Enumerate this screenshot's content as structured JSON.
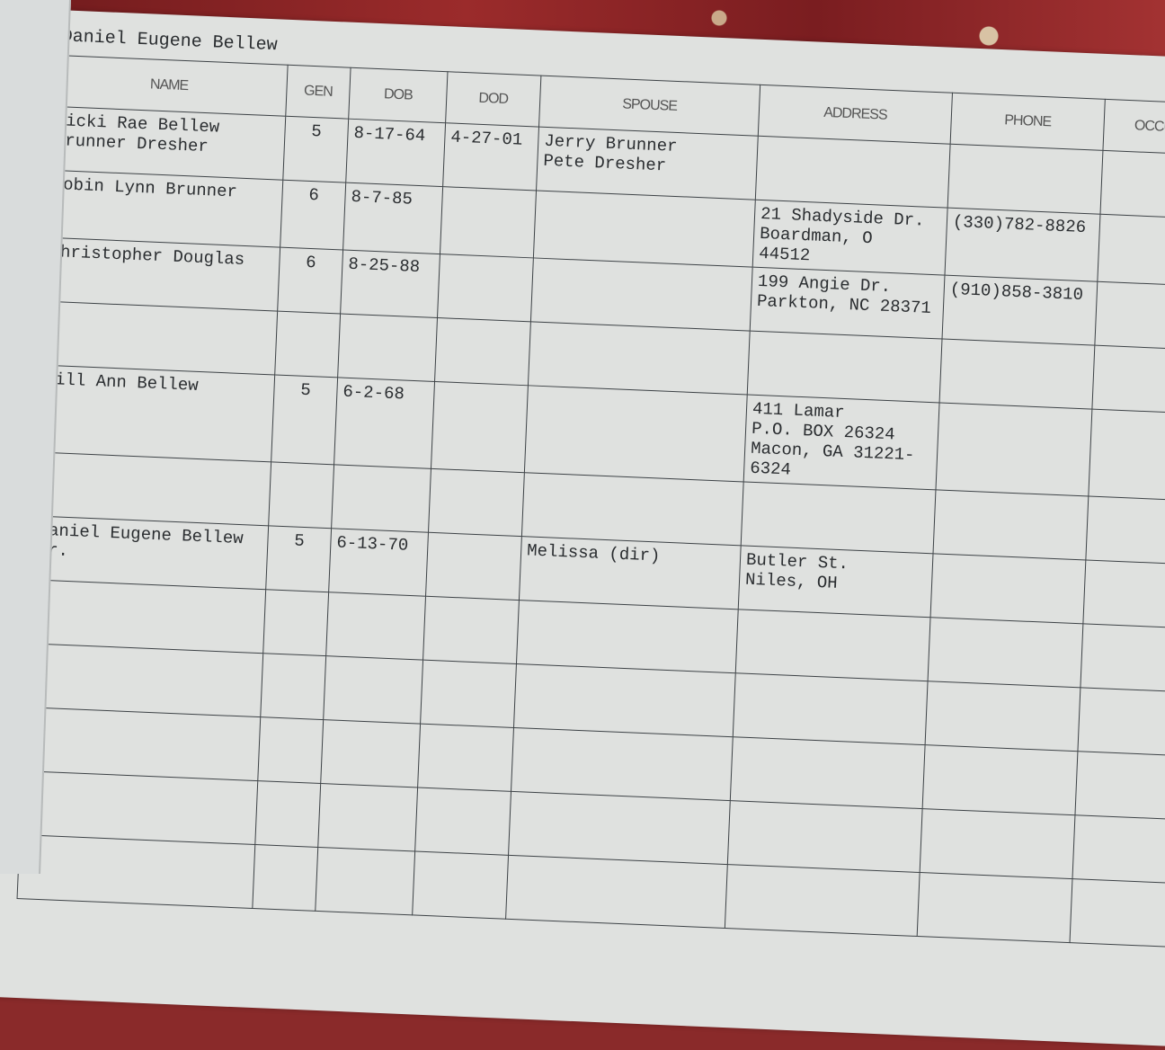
{
  "page_title": "Daniel Eugene Bellew",
  "columns": [
    "NAME",
    "GEN",
    "DOB",
    "DOD",
    "SPOUSE",
    "ADDRESS",
    "PHONE",
    "OCCUPATI"
  ],
  "rows": [
    {
      "name": "Vicki Rae Bellew\nBrunner Dresher",
      "gen": "5",
      "dob": "8-17-64",
      "dod": "4-27-01",
      "spouse": "Jerry Brunner\nPete Dresher",
      "address": "",
      "phone": "",
      "occupation": ""
    },
    {
      "name": "Robin Lynn Brunner",
      "gen": "6",
      "dob": "8-7-85",
      "dod": "",
      "spouse": "",
      "address": "21 Shadyside Dr.\nBoardman, O\n44512",
      "phone": "(330)782-8826",
      "occupation": ""
    },
    {
      "name": "Christopher Douglas",
      "gen": "6",
      "dob": "8-25-88",
      "dod": "",
      "spouse": "",
      "address": "199 Angie Dr.\nParkton, NC 28371",
      "phone": "(910)858-3810",
      "occupation": ""
    },
    {
      "name": "",
      "gen": "",
      "dob": "",
      "dod": "",
      "spouse": "",
      "address": "",
      "phone": "",
      "occupation": ""
    },
    {
      "name": "Jill Ann Bellew",
      "gen": "5",
      "dob": "6-2-68",
      "dod": "",
      "spouse": "",
      "address": "411 Lamar\nP.O. BOX 26324\nMacon, GA 31221-6324",
      "phone": "",
      "occupation": ""
    },
    {
      "name": "",
      "gen": "",
      "dob": "",
      "dod": "",
      "spouse": "",
      "address": "",
      "phone": "",
      "occupation": ""
    },
    {
      "name": "Daniel Eugene Bellew\nJr.",
      "gen": "5",
      "dob": "6-13-70",
      "dod": "",
      "spouse": "Melissa (dir)",
      "address": "Butler St.\nNiles, OH",
      "phone": "",
      "occupation": ""
    },
    {
      "name": "",
      "gen": "",
      "dob": "",
      "dod": "",
      "spouse": "",
      "address": "",
      "phone": "",
      "occupation": ""
    },
    {
      "name": "",
      "gen": "",
      "dob": "",
      "dod": "",
      "spouse": "",
      "address": "",
      "phone": "",
      "occupation": ""
    },
    {
      "name": "",
      "gen": "",
      "dob": "",
      "dod": "",
      "spouse": "",
      "address": "",
      "phone": "",
      "occupation": ""
    },
    {
      "name": "",
      "gen": "",
      "dob": "",
      "dod": "",
      "spouse": "",
      "address": "",
      "phone": "",
      "occupation": ""
    },
    {
      "name": "",
      "gen": "",
      "dob": "",
      "dod": "",
      "spouse": "",
      "address": "",
      "phone": "",
      "occupation": ""
    }
  ]
}
